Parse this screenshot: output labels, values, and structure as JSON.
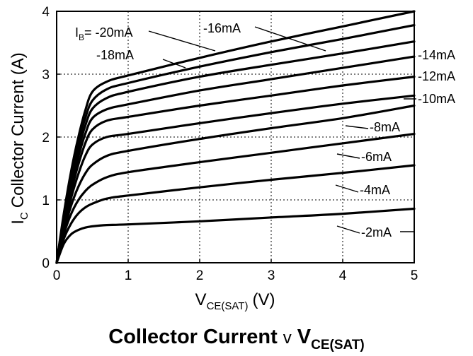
{
  "chart_data": {
    "type": "line",
    "title": {
      "main": "Collector Current",
      "connector": "v",
      "var": "V",
      "var_sub": "CE(SAT)"
    },
    "xlabel": {
      "var": "V",
      "sub": "CE(SAT)",
      "unit": "(V)"
    },
    "ylabel": {
      "var": "I",
      "sub": "C",
      "text": "Collector Current (A)"
    },
    "xlim": [
      0,
      5
    ],
    "ylim": [
      0,
      4
    ],
    "xticks": [
      "0",
      "1",
      "2",
      "3",
      "4",
      "5"
    ],
    "yticks": [
      "0",
      "1",
      "2",
      "3",
      "4"
    ],
    "grid": true,
    "series": [
      {
        "name": "-2mA",
        "x": [
          0,
          0.1,
          0.2,
          0.3,
          0.4,
          0.5,
          0.7,
          1,
          2,
          3,
          4,
          5
        ],
        "y": [
          0,
          0.3,
          0.45,
          0.52,
          0.56,
          0.58,
          0.6,
          0.61,
          0.66,
          0.72,
          0.78,
          0.86
        ]
      },
      {
        "name": "-4mA",
        "x": [
          0,
          0.1,
          0.2,
          0.3,
          0.4,
          0.5,
          0.7,
          1,
          2,
          3,
          4,
          5
        ],
        "y": [
          0,
          0.38,
          0.62,
          0.78,
          0.88,
          0.94,
          1.02,
          1.07,
          1.2,
          1.32,
          1.43,
          1.55
        ]
      },
      {
        "name": "-6mA",
        "x": [
          0,
          0.1,
          0.2,
          0.3,
          0.4,
          0.5,
          0.7,
          1,
          2,
          3,
          4,
          5
        ],
        "y": [
          0,
          0.45,
          0.77,
          0.99,
          1.14,
          1.24,
          1.36,
          1.44,
          1.6,
          1.75,
          1.9,
          2.05
        ]
      },
      {
        "name": "-8mA",
        "x": [
          0,
          0.1,
          0.2,
          0.3,
          0.4,
          0.5,
          0.7,
          1,
          2,
          3,
          4,
          5
        ],
        "y": [
          0,
          0.5,
          0.9,
          1.2,
          1.42,
          1.56,
          1.7,
          1.78,
          1.97,
          2.14,
          2.3,
          2.5
        ]
      },
      {
        "name": "-10mA",
        "x": [
          0,
          0.1,
          0.2,
          0.3,
          0.4,
          0.5,
          0.7,
          1,
          2,
          3,
          4,
          5
        ],
        "y": [
          0,
          0.55,
          1.02,
          1.4,
          1.7,
          1.88,
          2.0,
          2.05,
          2.22,
          2.38,
          2.53,
          2.66
        ]
      },
      {
        "name": "-12mA",
        "x": [
          0,
          0.1,
          0.2,
          0.3,
          0.4,
          0.5,
          0.7,
          1,
          2,
          3,
          4,
          5
        ],
        "y": [
          0,
          0.6,
          1.12,
          1.55,
          1.9,
          2.12,
          2.26,
          2.32,
          2.5,
          2.66,
          2.82,
          2.96
        ]
      },
      {
        "name": "-14mA",
        "x": [
          0,
          0.1,
          0.2,
          0.3,
          0.4,
          0.5,
          0.7,
          1,
          2,
          3,
          4,
          5
        ],
        "y": [
          0,
          0.65,
          1.2,
          1.67,
          2.05,
          2.3,
          2.44,
          2.52,
          2.74,
          2.92,
          3.1,
          3.28
        ]
      },
      {
        "name": "-16mA",
        "x": [
          0,
          0.1,
          0.2,
          0.3,
          0.4,
          0.5,
          0.7,
          1,
          2,
          3,
          4,
          5
        ],
        "y": [
          0,
          0.7,
          1.28,
          1.78,
          2.18,
          2.45,
          2.62,
          2.72,
          2.96,
          3.15,
          3.33,
          3.52
        ]
      },
      {
        "name": "-18mA",
        "x": [
          0,
          0.1,
          0.2,
          0.3,
          0.4,
          0.5,
          0.7,
          1,
          2,
          3,
          4,
          5
        ],
        "y": [
          0,
          0.74,
          1.36,
          1.88,
          2.3,
          2.58,
          2.76,
          2.86,
          3.12,
          3.35,
          3.56,
          3.78
        ]
      },
      {
        "name": "-20mA",
        "x": [
          0,
          0.1,
          0.2,
          0.3,
          0.4,
          0.5,
          0.7,
          1,
          2,
          3,
          4,
          5
        ],
        "y": [
          0,
          0.78,
          1.44,
          1.98,
          2.42,
          2.72,
          2.88,
          2.98,
          3.26,
          3.52,
          3.76,
          4.0
        ]
      }
    ],
    "annotations": [
      {
        "name": "ib-prefix",
        "text": "I",
        "sub": "B",
        "text2": "= -20mA"
      },
      {
        "name": "16ma",
        "text": "-16mA"
      },
      {
        "name": "18ma",
        "text": "-18mA"
      },
      {
        "name": "14ma",
        "text": "-14mA"
      },
      {
        "name": "12ma",
        "text": "-12mA"
      },
      {
        "name": "10ma",
        "text": "-10mA"
      },
      {
        "name": "8ma",
        "text": "-8mA"
      },
      {
        "name": "6ma",
        "text": "-6mA"
      },
      {
        "name": "4ma",
        "text": "-4mA"
      },
      {
        "name": "2ma",
        "text": "-2mA"
      }
    ]
  }
}
